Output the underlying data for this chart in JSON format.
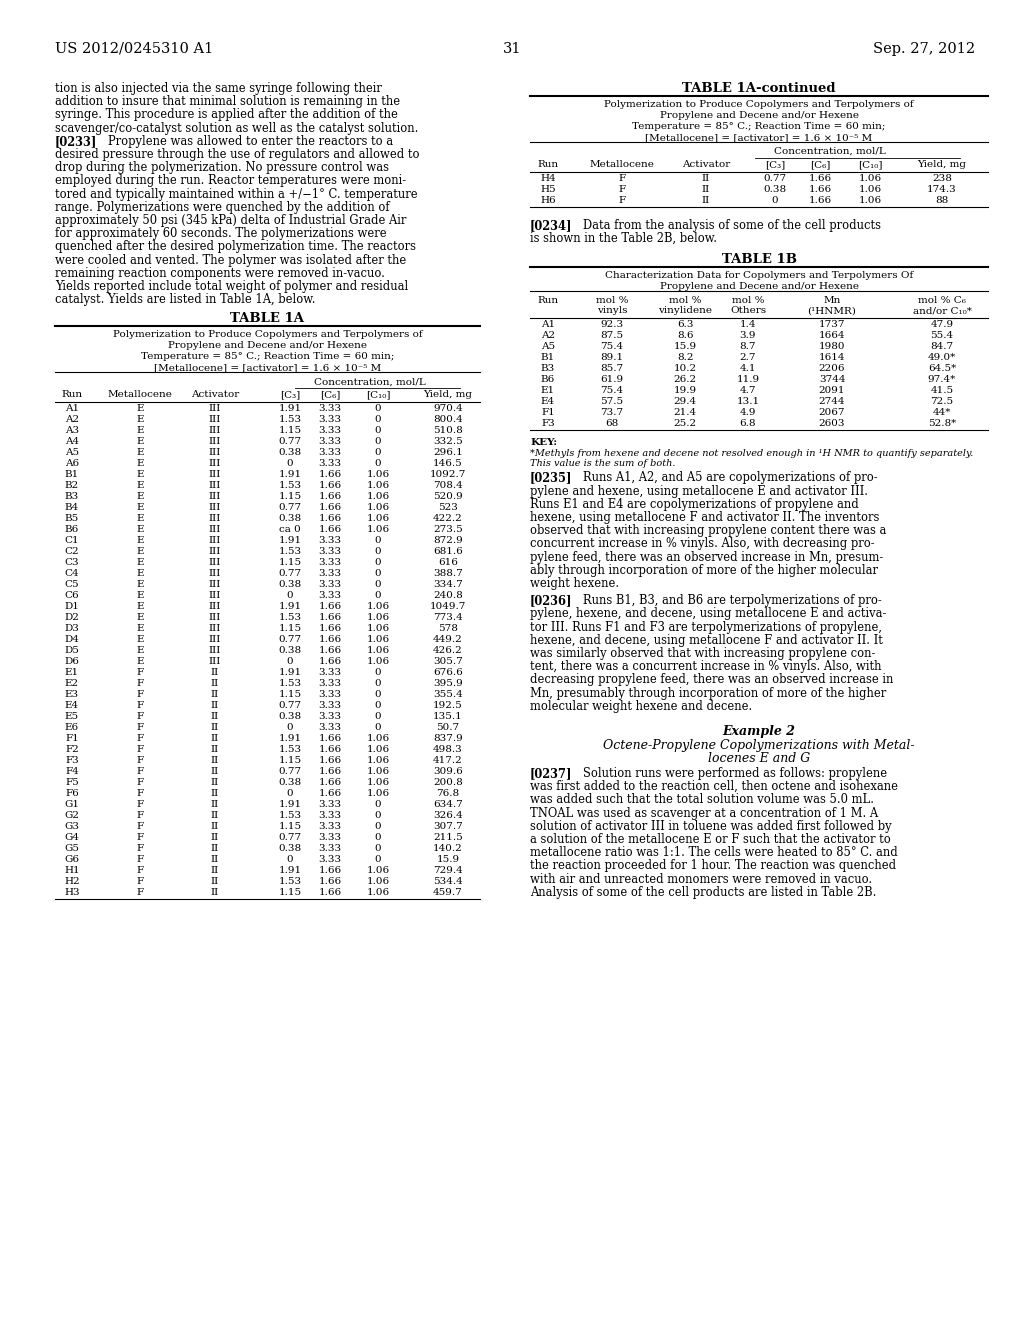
{
  "page_number": "31",
  "patent_number": "US 2012/0245310 A1",
  "date": "Sep. 27, 2012",
  "left_body_lines": [
    "tion is also injected via the same syringe following their",
    "addition to insure that minimal solution is remaining in the",
    "syringe. This procedure is applied after the addition of the",
    "scavenger/co-catalyst solution as well as the catalyst solution.",
    "[0233]",
    "desired pressure through the use of regulators and allowed to",
    "drop during the polymerization. No pressure control was",
    "employed during the run. Reactor temperatures were moni-",
    "tored and typically maintained within a +/−1° C. temperature",
    "range. Polymerizations were quenched by the addition of",
    "approximately 50 psi (345 kPa) delta of Industrial Grade Air",
    "for approximately 60 seconds. The polymerizations were",
    "quenched after the desired polymerization time. The reactors",
    "were cooled and vented. The polymer was isolated after the",
    "remaining reaction components were removed in-vacuo.",
    "Yields reported include total weight of polymer and residual",
    "catalyst. Yields are listed in Table 1A, below."
  ],
  "para0233_inline": "   Propylene was allowed to enter the reactors to a",
  "table1a_title": "TABLE 1A",
  "table1a_sub1": "Polymerization to Produce Copolymers and Terpolymers of",
  "table1a_sub2": "Propylene and Decene and/or Hexene",
  "table1a_sub3": "Temperature = 85° C.; Reaction Time = 60 min;",
  "table1a_sub4": "[Metallocene] = [activator] = 1.6 × 10⁻⁵ M",
  "conc_header": "Concentration, mol/L",
  "col_headers_1a": [
    "Run",
    "Metallocene",
    "Activator",
    "[C₃]",
    "[C₆]",
    "[C₁₀]",
    "Yield, mg"
  ],
  "table1a_rows": [
    [
      "A1",
      "E",
      "III",
      "1.91",
      "3.33",
      "0",
      "970.4"
    ],
    [
      "A2",
      "E",
      "III",
      "1.53",
      "3.33",
      "0",
      "800.4"
    ],
    [
      "A3",
      "E",
      "III",
      "1.15",
      "3.33",
      "0",
      "510.8"
    ],
    [
      "A4",
      "E",
      "III",
      "0.77",
      "3.33",
      "0",
      "332.5"
    ],
    [
      "A5",
      "E",
      "III",
      "0.38",
      "3.33",
      "0",
      "296.1"
    ],
    [
      "A6",
      "E",
      "III",
      "0",
      "3.33",
      "0",
      "146.5"
    ],
    [
      "B1",
      "E",
      "III",
      "1.91",
      "1.66",
      "1.06",
      "1092.7"
    ],
    [
      "B2",
      "E",
      "III",
      "1.53",
      "1.66",
      "1.06",
      "708.4"
    ],
    [
      "B3",
      "E",
      "III",
      "1.15",
      "1.66",
      "1.06",
      "520.9"
    ],
    [
      "B4",
      "E",
      "III",
      "0.77",
      "1.66",
      "1.06",
      "523"
    ],
    [
      "B5",
      "E",
      "III",
      "0.38",
      "1.66",
      "1.06",
      "422.2"
    ],
    [
      "B6",
      "E",
      "III",
      "ca 0",
      "1.66",
      "1.06",
      "273.5"
    ],
    [
      "C1",
      "E",
      "III",
      "1.91",
      "3.33",
      "0",
      "872.9"
    ],
    [
      "C2",
      "E",
      "III",
      "1.53",
      "3.33",
      "0",
      "681.6"
    ],
    [
      "C3",
      "E",
      "III",
      "1.15",
      "3.33",
      "0",
      "616"
    ],
    [
      "C4",
      "E",
      "III",
      "0.77",
      "3.33",
      "0",
      "388.7"
    ],
    [
      "C5",
      "E",
      "III",
      "0.38",
      "3.33",
      "0",
      "334.7"
    ],
    [
      "C6",
      "E",
      "III",
      "0",
      "3.33",
      "0",
      "240.8"
    ],
    [
      "D1",
      "E",
      "III",
      "1.91",
      "1.66",
      "1.06",
      "1049.7"
    ],
    [
      "D2",
      "E",
      "III",
      "1.53",
      "1.66",
      "1.06",
      "773.4"
    ],
    [
      "D3",
      "E",
      "III",
      "1.15",
      "1.66",
      "1.06",
      "578"
    ],
    [
      "D4",
      "E",
      "III",
      "0.77",
      "1.66",
      "1.06",
      "449.2"
    ],
    [
      "D5",
      "E",
      "III",
      "0.38",
      "1.66",
      "1.06",
      "426.2"
    ],
    [
      "D6",
      "E",
      "III",
      "0",
      "1.66",
      "1.06",
      "305.7"
    ],
    [
      "E1",
      "F",
      "II",
      "1.91",
      "3.33",
      "0",
      "676.6"
    ],
    [
      "E2",
      "F",
      "II",
      "1.53",
      "3.33",
      "0",
      "395.9"
    ],
    [
      "E3",
      "F",
      "II",
      "1.15",
      "3.33",
      "0",
      "355.4"
    ],
    [
      "E4",
      "F",
      "II",
      "0.77",
      "3.33",
      "0",
      "192.5"
    ],
    [
      "E5",
      "F",
      "II",
      "0.38",
      "3.33",
      "0",
      "135.1"
    ],
    [
      "E6",
      "F",
      "II",
      "0",
      "3.33",
      "0",
      "50.7"
    ],
    [
      "F1",
      "F",
      "II",
      "1.91",
      "1.66",
      "1.06",
      "837.9"
    ],
    [
      "F2",
      "F",
      "II",
      "1.53",
      "1.66",
      "1.06",
      "498.3"
    ],
    [
      "F3",
      "F",
      "II",
      "1.15",
      "1.66",
      "1.06",
      "417.2"
    ],
    [
      "F4",
      "F",
      "II",
      "0.77",
      "1.66",
      "1.06",
      "309.6"
    ],
    [
      "F5",
      "F",
      "II",
      "0.38",
      "1.66",
      "1.06",
      "200.8"
    ],
    [
      "F6",
      "F",
      "II",
      "0",
      "1.66",
      "1.06",
      "76.8"
    ],
    [
      "G1",
      "F",
      "II",
      "1.91",
      "3.33",
      "0",
      "634.7"
    ],
    [
      "G2",
      "F",
      "II",
      "1.53",
      "3.33",
      "0",
      "326.4"
    ],
    [
      "G3",
      "F",
      "II",
      "1.15",
      "3.33",
      "0",
      "307.7"
    ],
    [
      "G4",
      "F",
      "II",
      "0.77",
      "3.33",
      "0",
      "211.5"
    ],
    [
      "G5",
      "F",
      "II",
      "0.38",
      "3.33",
      "0",
      "140.2"
    ],
    [
      "G6",
      "F",
      "II",
      "0",
      "3.33",
      "0",
      "15.9"
    ],
    [
      "H1",
      "F",
      "II",
      "1.91",
      "1.66",
      "1.06",
      "729.4"
    ],
    [
      "H2",
      "F",
      "II",
      "1.53",
      "1.66",
      "1.06",
      "534.4"
    ],
    [
      "H3",
      "F",
      "II",
      "1.15",
      "1.66",
      "1.06",
      "459.7"
    ]
  ],
  "table1a_cont_rows": [
    [
      "H4",
      "F",
      "II",
      "0.77",
      "1.66",
      "1.06",
      "238"
    ],
    [
      "H5",
      "F",
      "II",
      "0.38",
      "1.66",
      "1.06",
      "174.3"
    ],
    [
      "H6",
      "F",
      "II",
      "0",
      "1.66",
      "1.06",
      "88"
    ]
  ],
  "table1b_title": "TABLE 1B",
  "table1b_sub1": "Characterization Data for Copolymers and Terpolymers Of",
  "table1b_sub2": "Propylene and Decene and/or Hexene",
  "table1b_col1": "Run",
  "table1b_col2": "mol %",
  "table1b_col2b": "vinyls",
  "table1b_col3": "mol %",
  "table1b_col3b": "vinylidene",
  "table1b_col4": "mol %",
  "table1b_col4b": "Others",
  "table1b_col5": "Mn",
  "table1b_col5b": "(¹HNMR)",
  "table1b_col6": "mol % C₆",
  "table1b_col6b": "and/or C₁₀*",
  "table1b_rows": [
    [
      "A1",
      "92.3",
      "6.3",
      "1.4",
      "1737",
      "47.9"
    ],
    [
      "A2",
      "87.5",
      "8.6",
      "3.9",
      "1664",
      "55.4"
    ],
    [
      "A5",
      "75.4",
      "15.9",
      "8.7",
      "1980",
      "84.7"
    ],
    [
      "B1",
      "89.1",
      "8.2",
      "2.7",
      "1614",
      "49.0*"
    ],
    [
      "B3",
      "85.7",
      "10.2",
      "4.1",
      "2206",
      "64.5*"
    ],
    [
      "B6",
      "61.9",
      "26.2",
      "11.9",
      "3744",
      "97.4*"
    ],
    [
      "E1",
      "75.4",
      "19.9",
      "4.7",
      "2091",
      "41.5"
    ],
    [
      "E4",
      "57.5",
      "29.4",
      "13.1",
      "2744",
      "72.5"
    ],
    [
      "F1",
      "73.7",
      "21.4",
      "4.9",
      "2067",
      "44*"
    ],
    [
      "F3",
      "68",
      "25.2",
      "6.8",
      "2603",
      "52.8*"
    ]
  ],
  "key_label": "KEY:",
  "footnote1": "*Methyls from hexene and decene not resolved enough in ¹H NMR to quantify separately.",
  "footnote2": "This value is the sum of both.",
  "para235_lines": [
    "   Runs A1, A2, and A5 are copolymerizations of pro-",
    "pylene and hexene, using metallocene E and activator III.",
    "Runs E1 and E4 are copolymerizations of propylene and",
    "hexene, using metallocene F and activator II. The inventors",
    "observed that with increasing propylene content there was a",
    "concurrent increase in % vinyls. Also, with decreasing pro-",
    "pylene feed, there was an observed increase in Mn, presum-",
    "ably through incorporation of more of the higher molecular",
    "weight hexene."
  ],
  "para236_lines": [
    "   Runs B1, B3, and B6 are terpolymerizations of pro-",
    "pylene, hexene, and decene, using metallocene E and activa-",
    "tor III. Runs F1 and F3 are terpolymerizations of propylene,",
    "hexene, and decene, using metallocene F and activator II. It",
    "was similarly observed that with increasing propylene con-",
    "tent, there was a concurrent increase in % vinyls. Also, with",
    "decreasing propylene feed, there was an observed increase in",
    "Mn, presumably through incorporation of more of the higher",
    "molecular weight hexene and decene."
  ],
  "example2_title": "Example 2",
  "example2_sub1": "Octene-Propylene Copolymerizations with Metal-",
  "example2_sub2": "locenes E and G",
  "para237_lines": [
    "   Solution runs were performed as follows: propylene",
    "was first added to the reaction cell, then octene and isohexane",
    "was added such that the total solution volume was 5.0 mL.",
    "TNOAL was used as scavenger at a concentration of 1 M. A",
    "solution of activator III in toluene was added first followed by",
    "a solution of the metallocene E or F such that the activator to",
    "metallocene ratio was 1:1. The cells were heated to 85° C. and",
    "the reaction proceeded for 1 hour. The reaction was quenched",
    "with air and unreacted monomers were removed in vacuo.",
    "Analysis of some of the cell products are listed in Table 2B."
  ]
}
